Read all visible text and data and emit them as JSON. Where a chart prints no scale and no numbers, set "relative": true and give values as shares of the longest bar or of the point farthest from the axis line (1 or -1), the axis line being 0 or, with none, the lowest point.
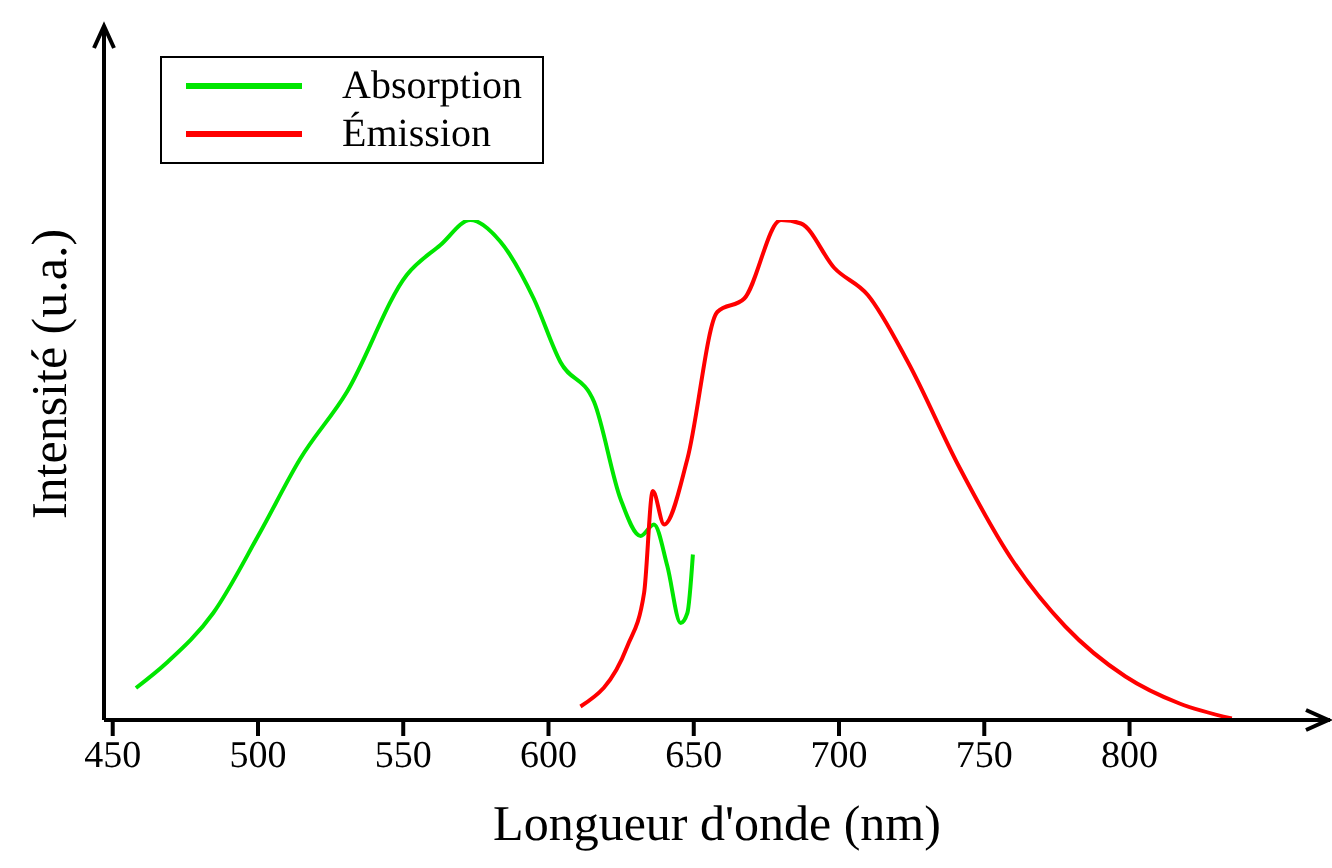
{
  "chart_data": {
    "type": "line",
    "relative": true,
    "xlabel": "Longueur d'onde  (nm)",
    "ylabel": "Intensité (u.a.)",
    "xlim": [
      447,
      869
    ],
    "xticks": [
      450,
      500,
      550,
      600,
      650,
      700,
      750,
      800
    ],
    "legend": "top left",
    "grid": false,
    "series": [
      {
        "name": "Absorption",
        "color": "#00e600",
        "x": [
          458,
          468.5,
          484.6,
          500.7,
          514.5,
          530.6,
          551.2,
          562.8,
          573.1,
          583.4,
          594.9,
          604.1,
          615.7,
          624.8,
          631.7,
          636.3,
          640.9,
          645.5,
          647.8,
          649.7
        ],
        "values": [
          0.064,
          0.114,
          0.214,
          0.375,
          0.522,
          0.656,
          0.89,
          0.95,
          1.0,
          0.957,
          0.843,
          0.716,
          0.636,
          0.442,
          0.368,
          0.391,
          0.308,
          0.194,
          0.214,
          0.331
        ]
      },
      {
        "name": "Émission",
        "color": "#ff0000",
        "x": [
          611,
          627.1,
          632.9,
          635.9,
          639.8,
          647.8,
          658.1,
          667.4,
          680,
          686.9,
          698.4,
          709.9,
          723.7,
          741.1,
          759.5,
          777.9,
          798.6,
          817.2,
          835.2
        ],
        "values": [
          0.027,
          0.147,
          0.254,
          0.458,
          0.391,
          0.522,
          0.816,
          0.843,
          1.0,
          0.993,
          0.904,
          0.85,
          0.716,
          0.509,
          0.321,
          0.187,
          0.087,
          0.033,
          0.003
        ]
      }
    ]
  }
}
